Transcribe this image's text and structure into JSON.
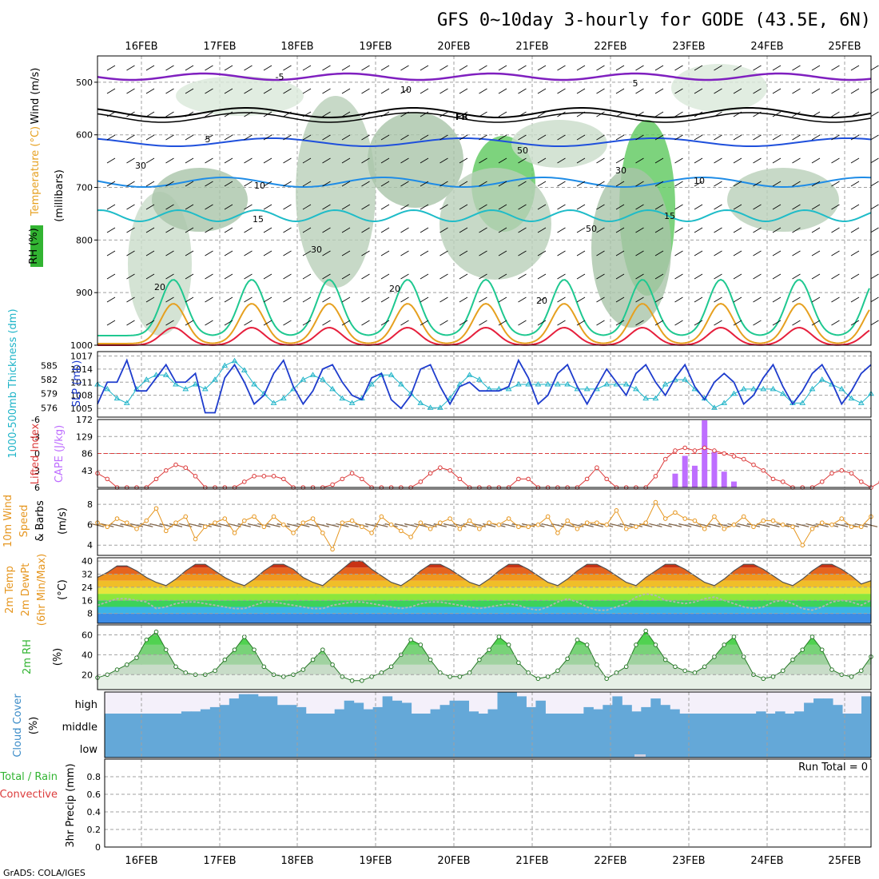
{
  "title": "GFS 0~10day 3-hourly for GODE (43.5E, 6N)",
  "credit": "GrADS: COLA/IGES",
  "dates": [
    "16FEB",
    "17FEB",
    "18FEB",
    "19FEB",
    "20FEB",
    "21FEB",
    "22FEB",
    "23FEB",
    "24FEB",
    "25FEB"
  ],
  "colors": {
    "purple": "#7f1fbf",
    "black": "#000000",
    "blue": "#1f50dc",
    "lightblue": "#1f8ce6",
    "teal": "#1fbcc8",
    "green": "#1fc890",
    "orange": "#e6a01f",
    "darkorange": "#e66f1f",
    "red": "#e61f3c",
    "slp": "#1e3ccd",
    "thick": "#1fb4c8",
    "li": "#dc3c3c",
    "cape": "#be6eff",
    "wspd": "#e6961f",
    "barb": "#826446",
    "rh": "#32b432",
    "cloud": "#64a8d8",
    "grid": "#a0a0a0"
  },
  "chart_data": [
    {
      "type": "contour",
      "panel": "upper-air",
      "ylabel_parts": [
        {
          "text": "Wind (m/s)",
          "color": "#000000"
        },
        {
          "text": "Temperature (°C)",
          "color": "#e6a01f"
        },
        {
          "text": "RH (%)",
          "color": "#32b432"
        }
      ],
      "ylabel2": "(millibars)",
      "yticks": [
        500,
        600,
        700,
        800,
        900,
        1000
      ],
      "ylim": [
        1000,
        450
      ],
      "contour_labels": [
        {
          "text": "-5",
          "series": "purple"
        },
        {
          "text": "5",
          "series": "purple"
        },
        {
          "text": "FR",
          "series": "black"
        },
        {
          "text": "5",
          "series": "blue"
        },
        {
          "text": "10",
          "series": "lightblue"
        },
        {
          "text": "10",
          "series": "lightblue"
        },
        {
          "text": "15",
          "series": "teal"
        },
        {
          "text": "15",
          "series": "teal"
        },
        {
          "text": "20",
          "series": "green"
        },
        {
          "text": "20",
          "series": "green"
        },
        {
          "text": "20",
          "series": "green"
        },
        {
          "text": "10",
          "series": "rh"
        },
        {
          "text": "30",
          "series": "rh"
        },
        {
          "text": "30",
          "series": "rh"
        },
        {
          "text": "30",
          "series": "rh"
        },
        {
          "text": "50",
          "series": "rh"
        },
        {
          "text": "50",
          "series": "rh"
        }
      ]
    },
    {
      "type": "line",
      "panel": "slp-thickness",
      "ylabel_left": "1000-500mb Thickness (dm)",
      "ylabel_right": "SLP (mb)",
      "left_ticks": [
        576,
        579,
        582,
        585
      ],
      "right_ticks": [
        1005,
        1008,
        1011,
        1014,
        1017
      ],
      "series": [
        {
          "name": "SLP (mb)",
          "values": [
            1006,
            1011,
            1011,
            1016,
            1009,
            1009,
            1012,
            1015,
            1011,
            1011,
            1013,
            1004,
            1004,
            1012,
            1015,
            1011,
            1006,
            1008,
            1013,
            1016,
            1010,
            1006,
            1009,
            1014,
            1015,
            1011,
            1008,
            1007,
            1012,
            1013,
            1007,
            1005,
            1008,
            1014,
            1015,
            1010,
            1006,
            1010,
            1011,
            1009,
            1009,
            1009,
            1010,
            1016,
            1012,
            1006,
            1008,
            1013,
            1015,
            1010,
            1006,
            1010,
            1014,
            1011,
            1008,
            1013,
            1015,
            1011,
            1008,
            1012,
            1015,
            1010,
            1007,
            1011,
            1013,
            1011,
            1006,
            1008,
            1012,
            1015,
            1010,
            1006,
            1009,
            1013,
            1015,
            1011,
            1006,
            1009,
            1013,
            1015
          ]
        },
        {
          "name": "Thickness (dm)",
          "values": [
            581,
            580,
            578,
            577,
            580,
            582,
            583,
            583,
            581,
            580,
            581,
            580,
            582,
            585,
            586,
            584,
            581,
            579,
            577,
            578,
            580,
            582,
            583,
            582,
            580,
            578,
            577,
            578,
            581,
            583,
            583,
            581,
            579,
            577,
            576,
            576,
            578,
            581,
            583,
            582,
            580,
            580,
            580,
            581,
            581,
            581,
            581,
            581,
            581,
            580,
            580,
            580,
            581,
            581,
            581,
            580,
            578,
            578,
            581,
            582,
            582,
            580,
            578,
            576,
            577,
            579,
            580,
            580,
            580,
            580,
            579,
            577,
            577,
            580,
            582,
            581,
            580,
            578,
            577,
            579
          ]
        }
      ]
    },
    {
      "type": "bar",
      "panel": "cape-li",
      "ylabel_left": "Lifted Index",
      "ylabel_right": "CAPE (J/kg)",
      "left_ticks": [
        6,
        3,
        0,
        -3,
        -6
      ],
      "right_ticks": [
        43,
        86,
        129,
        172
      ],
      "series": [
        {
          "name": "CAPE (J/kg)",
          "values": [
            35,
            80,
            55,
            170,
            90,
            40,
            15
          ]
        },
        {
          "name": "Lifted Index",
          "values": [
            3.5,
            4.5,
            6,
            6,
            6,
            6,
            4.5,
            3,
            2,
            2.5,
            4,
            6,
            6,
            6,
            6,
            5,
            4,
            4,
            4,
            4.5,
            6,
            6,
            6,
            6,
            5.5,
            4.5,
            3.5,
            4.5,
            6,
            6,
            6,
            6,
            6,
            5,
            3.5,
            2.5,
            3,
            4.5,
            6,
            6,
            6,
            6,
            6,
            4.5,
            4.5,
            6,
            6,
            6,
            6,
            6,
            4.5,
            2.5,
            4.5,
            6,
            6,
            6,
            6,
            4,
            1,
            -0.5,
            -1,
            -0.5,
            -1,
            -0.5,
            0,
            0.5,
            1,
            2,
            3,
            4.5,
            5,
            6,
            6,
            6,
            5,
            3.5,
            3,
            3.5,
            5,
            6,
            5,
            4
          ]
        }
      ]
    },
    {
      "type": "line",
      "panel": "wind10m",
      "ylabel_parts": [
        {
          "text": "10m Wind",
          "color": "#e6961f"
        },
        {
          "text": "Speed",
          "color": "#e6961f"
        },
        {
          "text": "& Barbs",
          "color": "#000000"
        }
      ],
      "ylabel_unit": "(m/s)",
      "yticks": [
        4,
        6,
        8
      ],
      "series": [
        {
          "name": "Speed",
          "values": [
            6.2,
            5.8,
            6.6,
            6.2,
            5.6,
            6.4,
            7.6,
            5.4,
            6.2,
            6.8,
            4.6,
            5.8,
            6.2,
            6.6,
            5.2,
            6.4,
            6.8,
            5.8,
            6.8,
            6.0,
            5.2,
            6.2,
            6.6,
            5.2,
            3.6,
            6.2,
            6.4,
            5.8,
            5.2,
            6.8,
            6.0,
            5.4,
            4.8,
            6.2,
            5.6,
            6.2,
            6.6,
            5.6,
            6.4,
            5.6,
            6.2,
            6.0,
            6.6,
            5.8,
            5.8,
            6.0,
            6.8,
            5.2,
            6.4,
            5.6,
            6.2,
            6.2,
            6.0,
            7.4,
            5.6,
            5.8,
            6.2,
            8.2,
            6.6,
            7.2,
            6.6,
            6.4,
            5.6,
            6.8,
            5.6,
            6.0,
            6.8,
            5.8,
            6.4,
            6.4,
            6.0,
            5.8,
            4.0,
            5.6,
            6.2,
            6.0,
            6.6,
            5.8,
            5.8,
            6.8
          ]
        }
      ]
    },
    {
      "type": "area",
      "panel": "temp2m",
      "ylabel_parts": [
        {
          "text": "2m Temp",
          "color": "#e6961f"
        },
        {
          "text": "2m DewPt",
          "color": "#e6961f"
        },
        {
          "text": "(6hr Min/Max)",
          "color": "#e6961f"
        }
      ],
      "ylabel_unit": "(°C)",
      "yticks": [
        8,
        16,
        24,
        32,
        40
      ],
      "series": [
        {
          "name": "2m Temp",
          "values": [
            30,
            33,
            37,
            37,
            34,
            30,
            27,
            25,
            29,
            34,
            38,
            38,
            34,
            30,
            27,
            25,
            29,
            34,
            38,
            38,
            35,
            30,
            27,
            25,
            30,
            35,
            40,
            40,
            35,
            31,
            27,
            25,
            29,
            34,
            38,
            38,
            35,
            31,
            27,
            25,
            29,
            34,
            38,
            38,
            35,
            31,
            27,
            25,
            29,
            34,
            38,
            38,
            35,
            31,
            27,
            25,
            30,
            34,
            38,
            38,
            35,
            31,
            27,
            25,
            29,
            34,
            38,
            38,
            35,
            31,
            27,
            25,
            29,
            34,
            38,
            38,
            35,
            31,
            26,
            28
          ]
        },
        {
          "name": "2m DewPt",
          "values": [
            13,
            15,
            17,
            17,
            16,
            15,
            11,
            12,
            14,
            15,
            15,
            14,
            13,
            12,
            11,
            11,
            13,
            15,
            15,
            14,
            13,
            12,
            11,
            11,
            13,
            14,
            15,
            15,
            14,
            13,
            12,
            11,
            12,
            14,
            15,
            15,
            14,
            13,
            12,
            11,
            12,
            13,
            14,
            13,
            11,
            10,
            12,
            15,
            17,
            15,
            12,
            10,
            10,
            12,
            14,
            18,
            20,
            19,
            16,
            15,
            14,
            15,
            17,
            18,
            16,
            14,
            12,
            11,
            12,
            15,
            16,
            14,
            11,
            10,
            12,
            15,
            16,
            15,
            13,
            16
          ]
        }
      ]
    },
    {
      "type": "area",
      "panel": "rh2m",
      "ylabel_parts": [
        {
          "text": "2m RH",
          "color": "#32b432"
        }
      ],
      "ylabel_unit": "(%)",
      "yticks": [
        20,
        40,
        60
      ],
      "series": [
        {
          "name": "2m RH",
          "values": [
            17,
            20,
            25,
            30,
            37,
            55,
            63,
            45,
            28,
            22,
            20,
            20,
            24,
            35,
            45,
            58,
            45,
            28,
            20,
            18,
            20,
            25,
            35,
            45,
            30,
            18,
            14,
            14,
            18,
            22,
            28,
            40,
            55,
            50,
            35,
            22,
            18,
            18,
            22,
            35,
            45,
            58,
            50,
            32,
            22,
            16,
            18,
            24,
            36,
            55,
            50,
            30,
            16,
            22,
            28,
            50,
            64,
            50,
            35,
            28,
            24,
            22,
            28,
            38,
            50,
            58,
            38,
            20,
            16,
            18,
            24,
            35,
            45,
            58,
            45,
            25,
            20,
            18,
            24,
            38
          ]
        }
      ]
    },
    {
      "type": "bar",
      "panel": "cloud-cover",
      "ylabel": "Cloud Cover",
      "ylabel_unit": "(%)",
      "yticks": [
        "low",
        "middle",
        "high"
      ],
      "series": [
        {
          "name": "high",
          "values": [
            0,
            0,
            0,
            0,
            0,
            0,
            0,
            0,
            10,
            10,
            20,
            30,
            40,
            70,
            90,
            90,
            80,
            80,
            40,
            40,
            30,
            0,
            0,
            0,
            20,
            60,
            50,
            20,
            30,
            80,
            60,
            50,
            0,
            0,
            20,
            40,
            60,
            60,
            10,
            0,
            20,
            100,
            100,
            80,
            30,
            60,
            0,
            0,
            0,
            0,
            30,
            20,
            40,
            80,
            40,
            10,
            30,
            70,
            40,
            20,
            0,
            0,
            0,
            0,
            0,
            0,
            0,
            0,
            10,
            0,
            10,
            0,
            10,
            50,
            70,
            70,
            40,
            0,
            0,
            80
          ]
        },
        {
          "name": "middle",
          "values": [
            100,
            100,
            100,
            100,
            100,
            100,
            100,
            100,
            100,
            100,
            100,
            100,
            100,
            100,
            100,
            100,
            100,
            100,
            100,
            100,
            100,
            100,
            100,
            100,
            100,
            100,
            100,
            100,
            100,
            100,
            100,
            100,
            100,
            100,
            100,
            100,
            100,
            100,
            100,
            100,
            100,
            100,
            100,
            100,
            100,
            100,
            100,
            100,
            100,
            100,
            100,
            100,
            100,
            100,
            100,
            100,
            100,
            100,
            100,
            100,
            100,
            100,
            100,
            100,
            100,
            100,
            100,
            100,
            100,
            100,
            100,
            100,
            100,
            100,
            100,
            100,
            100,
            100,
            100,
            100
          ]
        }
      ]
    },
    {
      "type": "bar",
      "panel": "precip",
      "ylabel_parts": [
        {
          "text": "Total / Rain",
          "color": "#32b432"
        },
        {
          "text": "Convective",
          "color": "#dc3c3c"
        }
      ],
      "ylabel": "3hr Precip (mm)",
      "yticks": [
        0,
        0.2,
        0.4,
        0.6,
        0.8
      ],
      "ylim": [
        0,
        1
      ],
      "run_total": "Run Total = 0",
      "series": []
    }
  ]
}
